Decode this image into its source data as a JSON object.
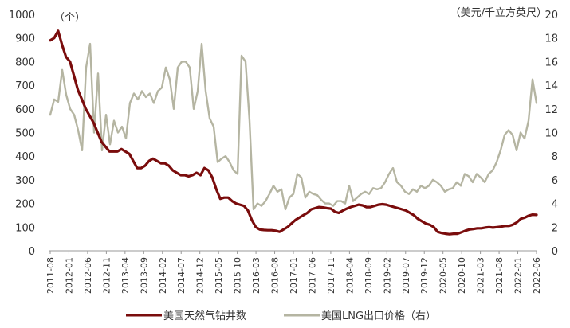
{
  "chart_data": {
    "type": "line",
    "left_unit": "（个）",
    "right_unit": "（美元/千立方英尺）",
    "ylim_left": [
      0,
      1000
    ],
    "ylim_right": [
      0,
      20
    ],
    "left_ticks": [
      "0",
      "100",
      "200",
      "300",
      "400",
      "500",
      "600",
      "700",
      "800",
      "900",
      "1000"
    ],
    "right_ticks": [
      "0",
      "2",
      "4",
      "6",
      "8",
      "10",
      "12",
      "14",
      "16",
      "18",
      "20"
    ],
    "x_ticks": [
      "2011-08",
      "2012-01",
      "2012-06",
      "2012-11",
      "2013-04",
      "2013-09",
      "2014-02",
      "2014-07",
      "2014-12",
      "2015-05",
      "2015-10",
      "2016-03",
      "2016-08",
      "2017-01",
      "2017-06",
      "2017-11",
      "2018-04",
      "2018-09",
      "2019-02",
      "2019-07",
      "2019-12",
      "2020-05",
      "2020-10",
      "2021-03",
      "2021-08",
      "2022-01",
      "2022-06"
    ],
    "grid": false,
    "legend_position": "bottom",
    "series": [
      {
        "name": "美国天然气钻井数",
        "axis": "left",
        "color": "#7a0c0c",
        "values": [
          890,
          900,
          930,
          870,
          820,
          800,
          740,
          680,
          640,
          600,
          570,
          540,
          500,
          460,
          440,
          420,
          420,
          420,
          430,
          420,
          410,
          380,
          350,
          350,
          360,
          380,
          390,
          380,
          370,
          370,
          360,
          340,
          330,
          320,
          320,
          315,
          320,
          330,
          320,
          350,
          340,
          310,
          260,
          220,
          225,
          225,
          210,
          200,
          195,
          190,
          170,
          130,
          100,
          90,
          88,
          87,
          87,
          85,
          80,
          90,
          100,
          115,
          130,
          140,
          150,
          160,
          175,
          180,
          185,
          183,
          180,
          178,
          165,
          160,
          170,
          178,
          185,
          190,
          195,
          192,
          185,
          185,
          190,
          195,
          197,
          195,
          190,
          185,
          180,
          175,
          170,
          160,
          150,
          135,
          125,
          115,
          110,
          100,
          80,
          75,
          72,
          70,
          72,
          72,
          78,
          85,
          90,
          92,
          95,
          95,
          98,
          100,
          98,
          100,
          102,
          105,
          105,
          110,
          120,
          135,
          140,
          148,
          153,
          152
        ]
      },
      {
        "name": "美国LNG出口价格（右）",
        "axis": "right",
        "color": "#b5b5a2",
        "values": [
          11.5,
          12.8,
          12.6,
          15.3,
          13.2,
          12.0,
          11.5,
          10.2,
          8.5,
          15.5,
          17.5,
          10.0,
          15.0,
          8.5,
          11.5,
          9.0,
          11.0,
          10.0,
          10.5,
          9.5,
          12.5,
          13.3,
          12.8,
          13.5,
          13.0,
          13.3,
          12.5,
          13.5,
          13.8,
          15.5,
          14.5,
          12.0,
          15.5,
          16.0,
          16.0,
          15.5,
          12.0,
          13.5,
          17.5,
          13.5,
          11.2,
          10.5,
          7.5,
          7.8,
          8.0,
          7.5,
          6.8,
          6.5,
          16.5,
          16.0,
          11.0,
          3.5,
          4.0,
          3.8,
          4.2,
          4.8,
          5.5,
          5.0,
          5.2,
          3.5,
          4.5,
          4.8,
          6.5,
          6.2,
          4.5,
          5.0,
          4.8,
          4.7,
          4.3,
          4.0,
          4.0,
          3.8,
          4.2,
          4.2,
          4.0,
          5.5,
          4.2,
          4.5,
          4.8,
          5.0,
          4.8,
          5.3,
          5.2,
          5.3,
          5.8,
          6.5,
          7.0,
          5.8,
          5.5,
          5.0,
          4.8,
          5.2,
          5.0,
          5.5,
          5.3,
          5.5,
          6.0,
          5.8,
          5.5,
          5.0,
          5.2,
          5.3,
          5.8,
          5.5,
          6.5,
          6.3,
          5.8,
          6.5,
          6.2,
          5.8,
          6.5,
          6.8,
          7.5,
          8.5,
          9.8,
          10.2,
          9.8,
          8.5,
          10.0,
          9.5,
          11.0,
          14.5,
          12.5
        ]
      }
    ]
  }
}
